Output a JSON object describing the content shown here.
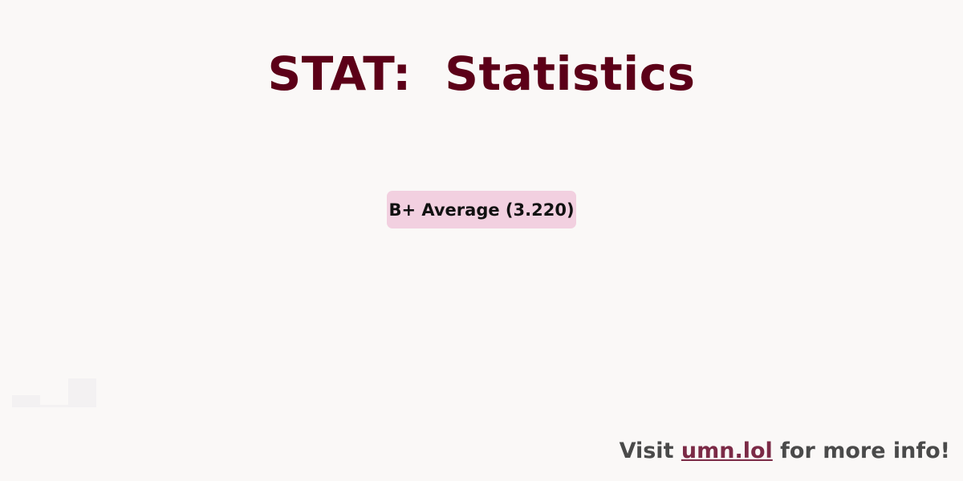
{
  "header": {
    "title": "STAT:  Statistics"
  },
  "badge": {
    "label": "B+ Average (3.220)",
    "color": "#f2d0e0"
  },
  "footer": {
    "prefix": "Visit ",
    "link": "umn.lol",
    "suffix": " for more info!"
  },
  "colors": {
    "title": "#5c0018",
    "link": "#7b2a46",
    "background": "#faf8f7"
  }
}
